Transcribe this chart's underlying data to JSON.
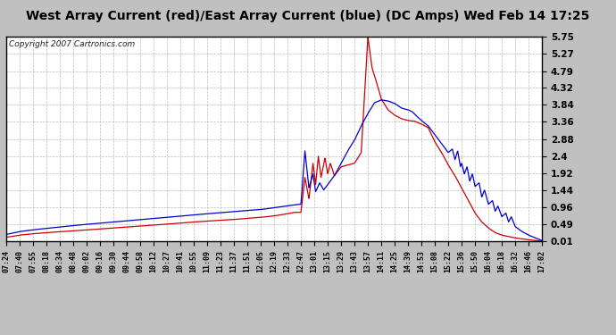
{
  "title": "West Array Current (red)/East Array Current (blue) (DC Amps) Wed Feb 14 17:25",
  "copyright": "Copyright 2007 Cartronics.com",
  "yticks": [
    0.01,
    0.49,
    0.96,
    1.44,
    1.92,
    2.4,
    2.88,
    3.36,
    3.84,
    4.32,
    4.79,
    5.27,
    5.75
  ],
  "ylim": [
    0.01,
    5.75
  ],
  "xtick_labels": [
    "07:24",
    "07:40",
    "07:55",
    "08:18",
    "08:34",
    "08:48",
    "09:02",
    "09:16",
    "09:30",
    "09:44",
    "09:58",
    "10:12",
    "10:27",
    "10:41",
    "10:55",
    "11:09",
    "11:23",
    "11:37",
    "11:51",
    "12:05",
    "12:19",
    "12:33",
    "12:47",
    "13:01",
    "13:15",
    "13:29",
    "13:43",
    "13:57",
    "14:11",
    "14:25",
    "14:39",
    "14:53",
    "15:08",
    "15:22",
    "15:36",
    "15:50",
    "16:04",
    "16:18",
    "16:32",
    "16:46",
    "17:02"
  ],
  "outer_bg": "#c0c0c0",
  "plot_bg": "#ffffff",
  "red_color": "#cc0000",
  "blue_color": "#0000cc",
  "title_color": "#000000",
  "title_fontsize": 10,
  "copyright_fontsize": 6.5,
  "grid_color": "#aaaaaa",
  "line_width": 0.9,
  "x_tick_fontsize": 6,
  "y_tick_fontsize": 7.5
}
